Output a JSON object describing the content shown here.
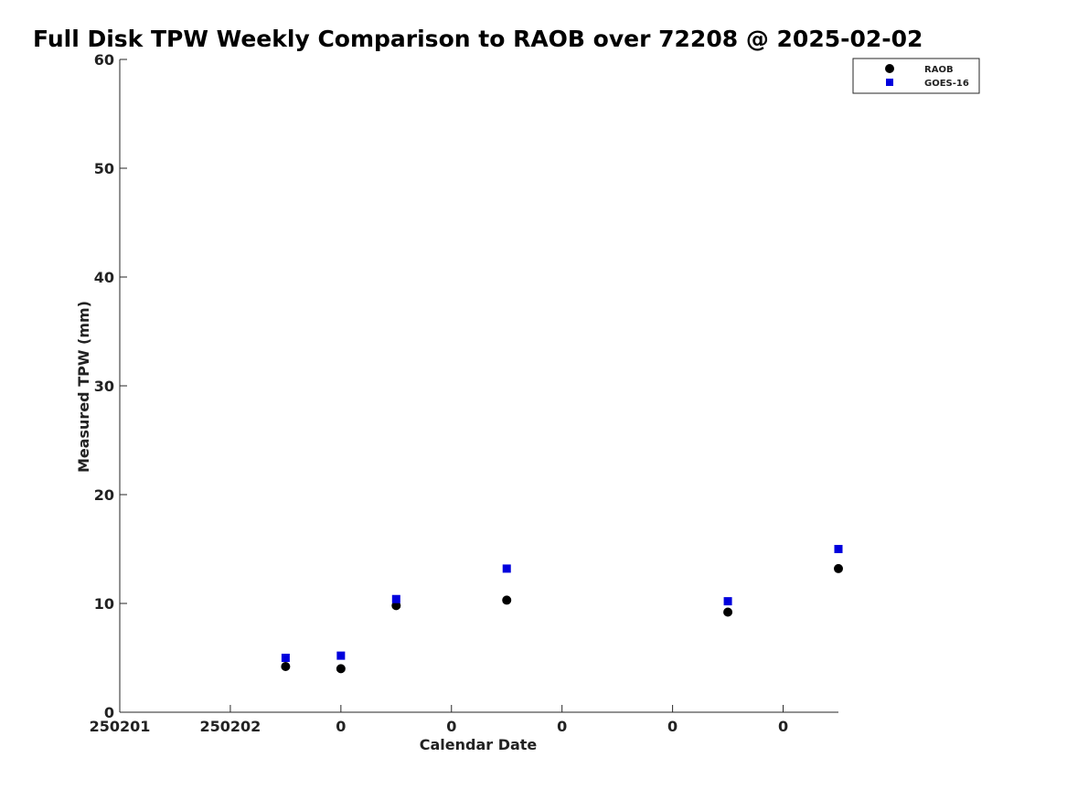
{
  "chart_data": {
    "type": "scatter",
    "title": "Full Disk TPW Weekly Comparison to RAOB over 72208 @ 2025-02-02",
    "xlabel": "Calendar Date",
    "ylabel": "Measured TPW (mm)",
    "xlim": [
      0,
      6.5
    ],
    "ylim": [
      0,
      60
    ],
    "x_ticks": [
      {
        "x": 0,
        "label": "250201"
      },
      {
        "x": 1,
        "label": "250202"
      },
      {
        "x": 2,
        "label": "0"
      },
      {
        "x": 3,
        "label": "0"
      },
      {
        "x": 4,
        "label": "0"
      },
      {
        "x": 5,
        "label": "0"
      },
      {
        "x": 6,
        "label": "0"
      }
    ],
    "y_ticks": [
      0,
      10,
      20,
      30,
      40,
      50,
      60
    ],
    "legend_position": "top-right",
    "series": [
      {
        "name": "RAOB",
        "marker": "circle",
        "color": "#000000",
        "points": [
          [
            1.5,
            4.2
          ],
          [
            2.0,
            4.0
          ],
          [
            2.5,
            9.8
          ],
          [
            3.5,
            10.3
          ],
          [
            5.5,
            9.2
          ],
          [
            6.5,
            13.2
          ]
        ]
      },
      {
        "name": "GOES-16",
        "marker": "square",
        "color": "#0000dd",
        "points": [
          [
            1.5,
            5.0
          ],
          [
            2.0,
            5.2
          ],
          [
            2.5,
            10.4
          ],
          [
            3.5,
            13.2
          ],
          [
            5.5,
            10.2
          ],
          [
            6.5,
            15.0
          ]
        ]
      }
    ]
  }
}
